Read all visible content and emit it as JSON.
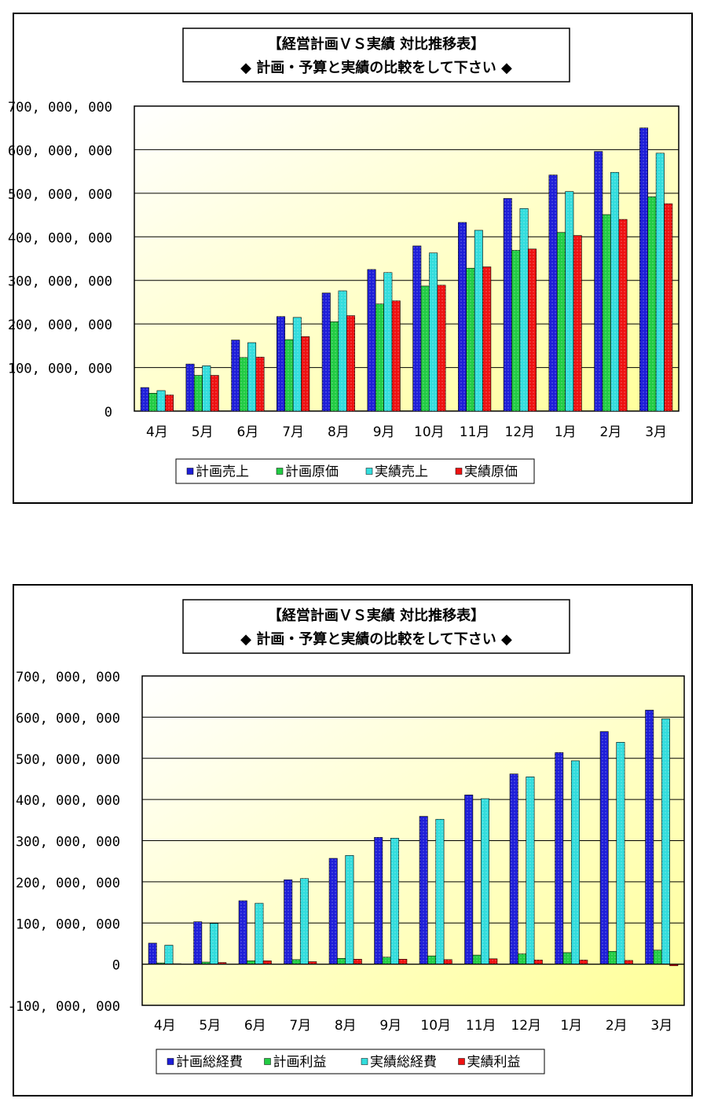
{
  "colors": {
    "plan_blue": "#1e1ed8",
    "plan_green": "#22cc44",
    "actual_cyan": "#33dddd",
    "actual_red": "#ee1111",
    "plot_bg_from": "#ffffff",
    "plot_bg_to": "#ffff99"
  },
  "chart_data": [
    {
      "type": "bar",
      "title_line1": "【経営計画ＶＳ実績 対比推移表】",
      "title_line2": "◆ 計画・予算と実績の比較をして下さい ◆",
      "categories": [
        "4月",
        "5月",
        "6月",
        "7月",
        "8月",
        "9月",
        "10月",
        "11月",
        "12月",
        "1月",
        "2月",
        "3月"
      ],
      "ylim": [
        0,
        700000000
      ],
      "yticks": [
        0,
        100000000,
        200000000,
        300000000,
        400000000,
        500000000,
        600000000,
        700000000
      ],
      "ytick_labels": [
        "0",
        "100, 000, 000",
        "200, 000, 000",
        "300, 000, 000",
        "400, 000, 000",
        "500, 000, 000",
        "600, 000, 000",
        "700, 000, 000"
      ],
      "grid": true,
      "legend_position": "bottom",
      "series": [
        {
          "name": "計画売上",
          "color": "#1e1ed8",
          "values": [
            54000000,
            108000000,
            163000000,
            217000000,
            271000000,
            325000000,
            379000000,
            433000000,
            488000000,
            542000000,
            596000000,
            650000000
          ]
        },
        {
          "name": "計画原価",
          "color": "#22cc44",
          "values": [
            41000000,
            82000000,
            123000000,
            164000000,
            205000000,
            246000000,
            287000000,
            328000000,
            369000000,
            410000000,
            451000000,
            492000000
          ]
        },
        {
          "name": "実績売上",
          "color": "#33dddd",
          "values": [
            47000000,
            104000000,
            157000000,
            215000000,
            276000000,
            318000000,
            363000000,
            415000000,
            465000000,
            504000000,
            548000000,
            592000000
          ]
        },
        {
          "name": "実績原価",
          "color": "#ee1111",
          "values": [
            37000000,
            82000000,
            124000000,
            171000000,
            219000000,
            253000000,
            289000000,
            331000000,
            372000000,
            403000000,
            440000000,
            476000000
          ]
        }
      ]
    },
    {
      "type": "bar",
      "title_line1": "【経営計画ＶＳ実績 対比推移表】",
      "title_line2": "◆ 計画・予算と実績の比較をして下さい ◆",
      "categories": [
        "4月",
        "5月",
        "6月",
        "7月",
        "8月",
        "9月",
        "10月",
        "11月",
        "12月",
        "1月",
        "2月",
        "3月"
      ],
      "ylim": [
        -100000000,
        700000000
      ],
      "yticks": [
        -100000000,
        0,
        100000000,
        200000000,
        300000000,
        400000000,
        500000000,
        600000000,
        700000000
      ],
      "ytick_labels": [
        "-100, 000, 000",
        "0",
        "100, 000, 000",
        "200, 000, 000",
        "300, 000, 000",
        "400, 000, 000",
        "500, 000, 000",
        "600, 000, 000",
        "700, 000, 000"
      ],
      "grid": true,
      "legend_position": "bottom",
      "series": [
        {
          "name": "計画総経費",
          "color": "#1e1ed8",
          "values": [
            51000000,
            103000000,
            154000000,
            205000000,
            257000000,
            308000000,
            359000000,
            411000000,
            462000000,
            514000000,
            565000000,
            617000000
          ]
        },
        {
          "name": "計画利益",
          "color": "#22cc44",
          "values": [
            3000000,
            5000000,
            8000000,
            11000000,
            14000000,
            17000000,
            20000000,
            22000000,
            25000000,
            28000000,
            31000000,
            34000000
          ]
        },
        {
          "name": "実績総経費",
          "color": "#33dddd",
          "values": [
            46000000,
            99000000,
            148000000,
            208000000,
            264000000,
            306000000,
            352000000,
            402000000,
            455000000,
            494000000,
            539000000,
            596000000
          ]
        },
        {
          "name": "実績利益",
          "color": "#ee1111",
          "values": [
            1000000,
            4000000,
            8000000,
            6000000,
            12000000,
            12000000,
            11000000,
            13000000,
            10000000,
            10000000,
            9000000,
            -4000000
          ]
        }
      ]
    }
  ]
}
